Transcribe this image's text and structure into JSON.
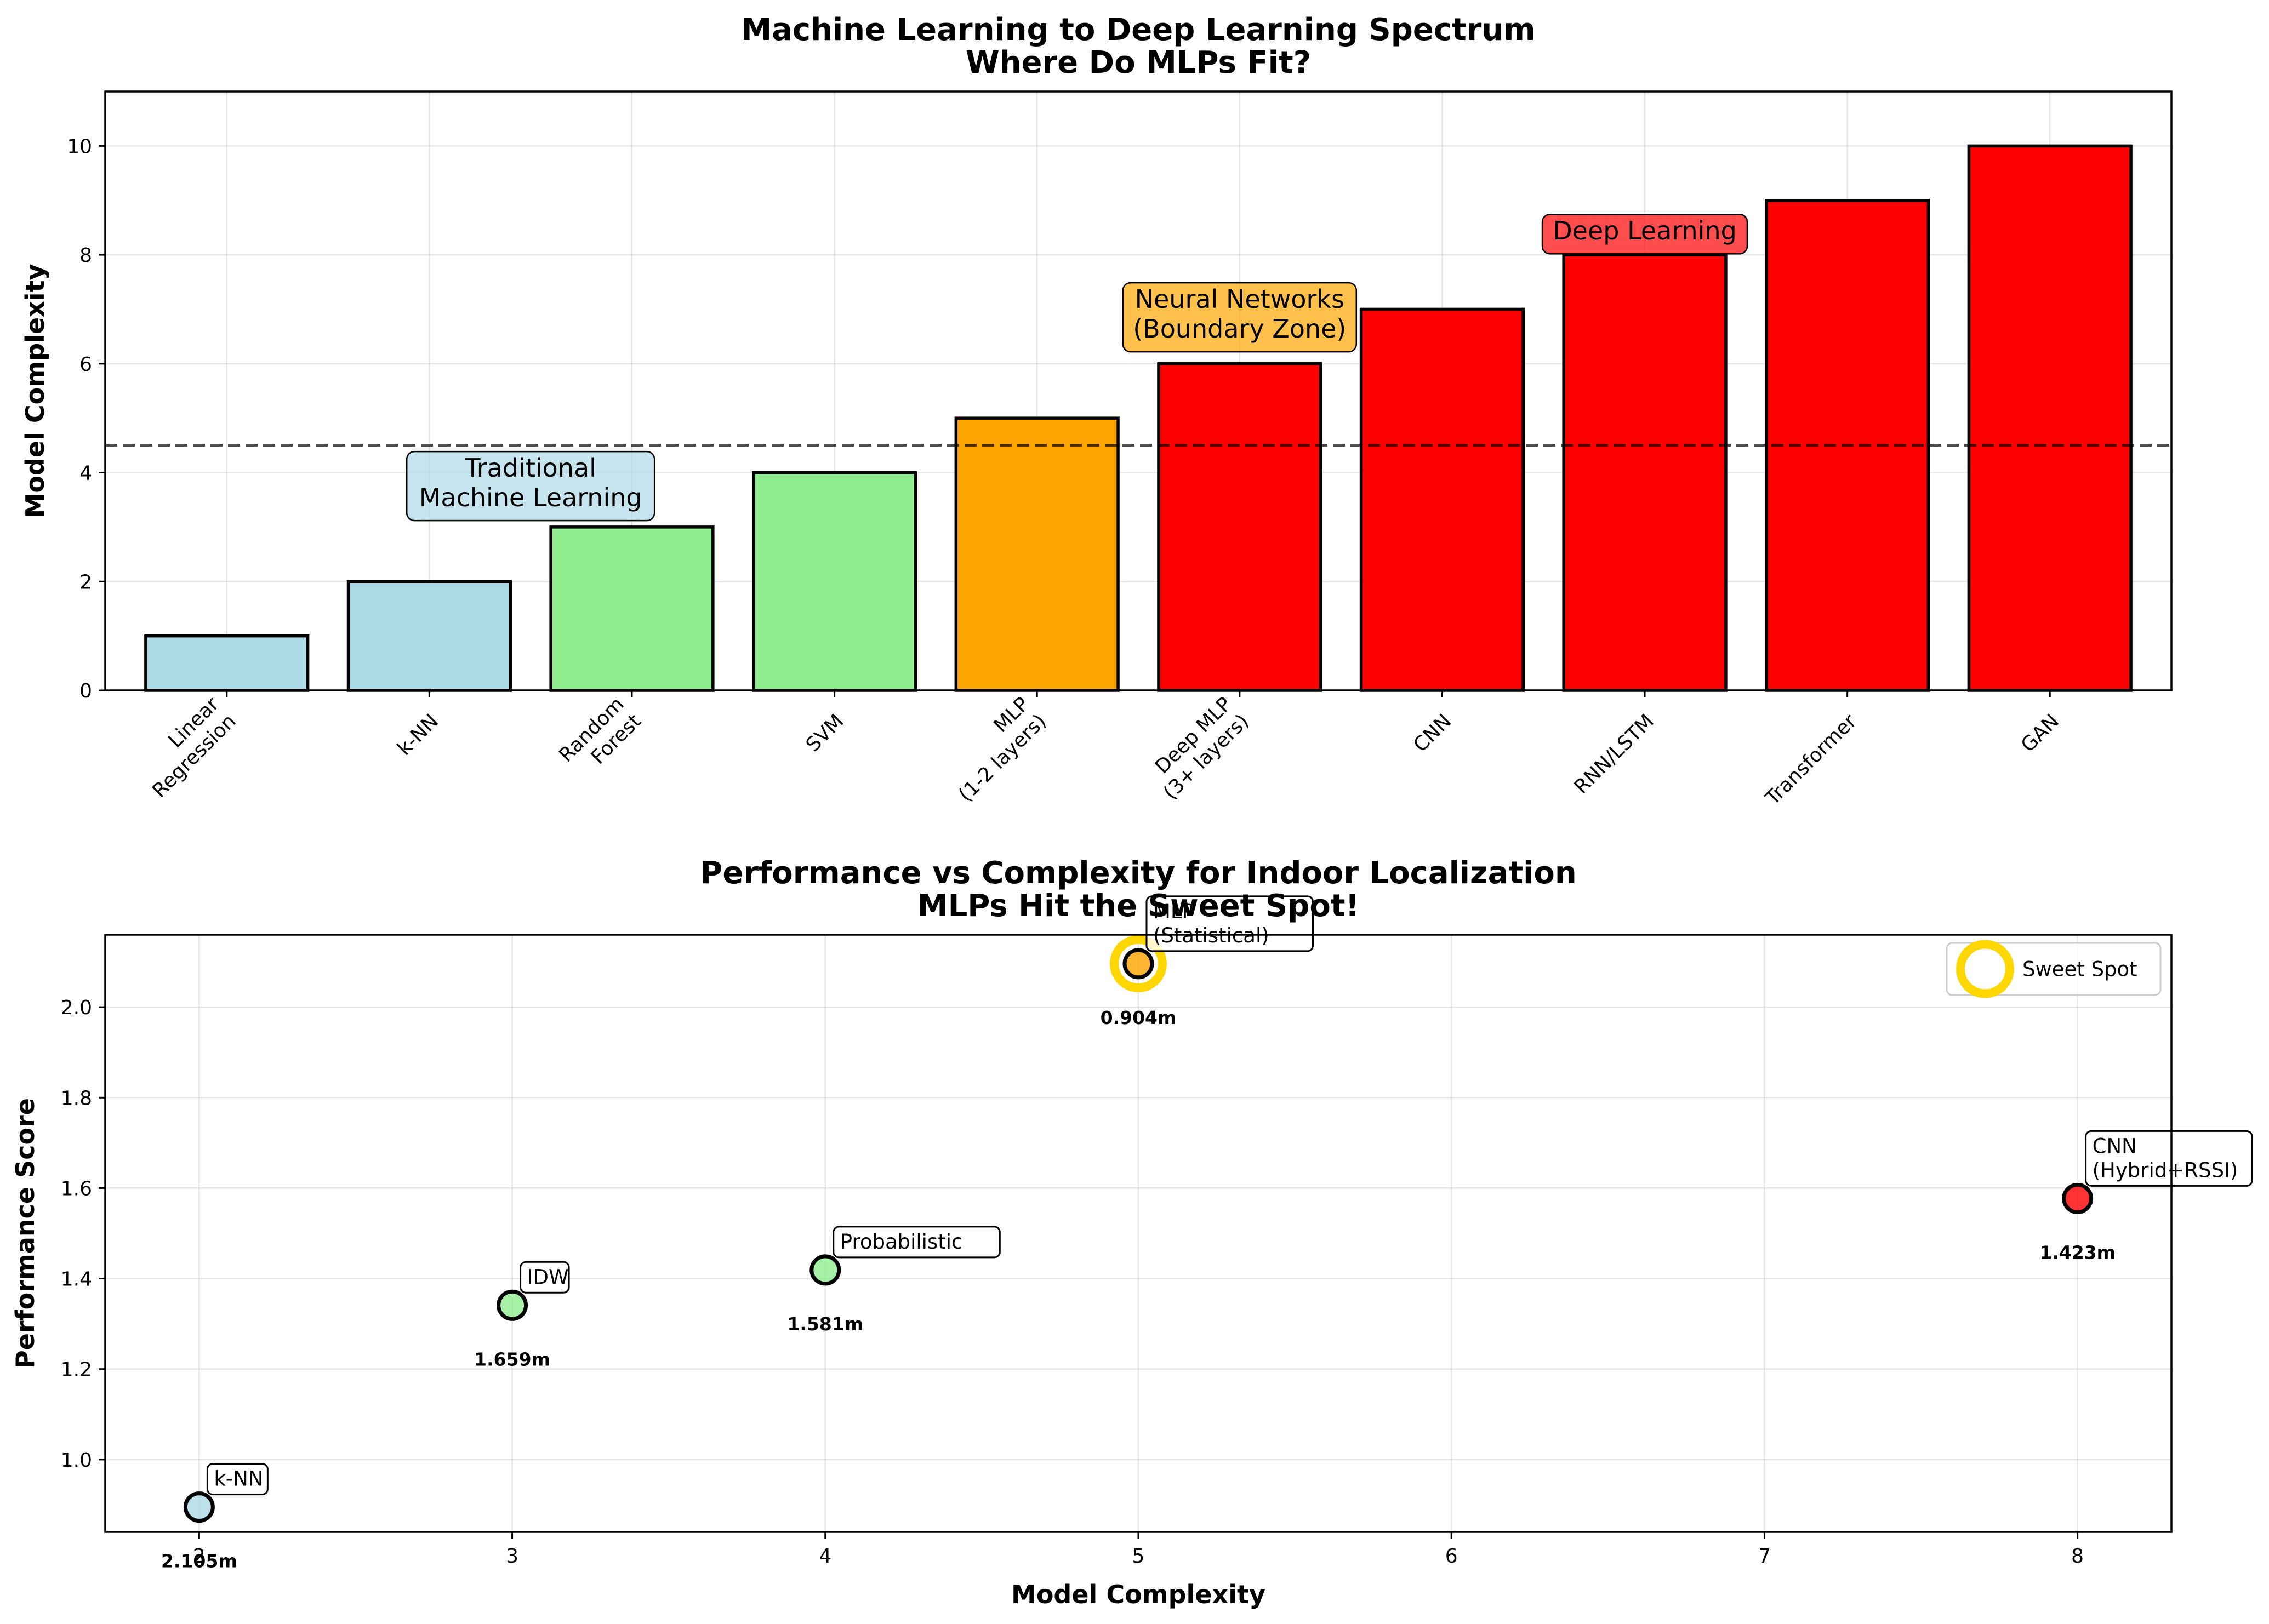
{
  "chart_data": [
    {
      "type": "bar",
      "title": "Machine Learning to Deep Learning Spectrum\nWhere Do MLPs Fit?",
      "xlabel": "",
      "ylabel": "Model Complexity",
      "ylim": [
        0,
        11
      ],
      "yticks": [
        0,
        2,
        4,
        6,
        8,
        10
      ],
      "grid": true,
      "categories": [
        "Linear\nRegression",
        "k-NN",
        "Random\nForest",
        "SVM",
        "MLP\n(1-2 layers)",
        "Deep MLP\n(3+ layers)",
        "CNN",
        "RNN/LSTM",
        "Transformer",
        "GAN"
      ],
      "values": [
        1,
        2,
        3,
        4,
        5,
        6,
        7,
        8,
        9,
        10
      ],
      "colors": [
        "#add8e6",
        "#add8e6",
        "#90ee90",
        "#90ee90",
        "#ffa500",
        "#ff0000",
        "#ff0000",
        "#ff0000",
        "#ff0000",
        "#ff0000"
      ],
      "threshold_line": 4.5,
      "annotations": [
        {
          "text": "Traditional\nMachine Learning",
          "x": 1.5,
          "y": 3.3,
          "color": "#add8e6"
        },
        {
          "text": "Neural Networks\n(Boundary Zone)",
          "x": 5.0,
          "y": 6.4,
          "color": "#ffa500"
        },
        {
          "text": "Deep Learning",
          "x": 7.0,
          "y": 8.2,
          "color": "#ff0000"
        }
      ]
    },
    {
      "type": "scatter",
      "title": "Performance vs Complexity for Indoor Localization\nMLPs Hit the Sweet Spot!",
      "xlabel": "Model Complexity",
      "ylabel": "Performance Score",
      "xlim": [
        1.7,
        8.3
      ],
      "ylim": [
        0.84,
        2.16
      ],
      "xticks": [
        2,
        3,
        4,
        5,
        6,
        7,
        8
      ],
      "yticks": [
        1.0,
        1.2,
        1.4,
        1.6,
        1.8,
        2.0
      ],
      "grid": true,
      "points": [
        {
          "label": "k-NN",
          "x": 2,
          "y": 0.895,
          "error": "2.105m",
          "color": "#add8e6"
        },
        {
          "label": "IDW",
          "x": 3,
          "y": 1.341,
          "error": "1.659m",
          "color": "#90ee90"
        },
        {
          "label": "Probabilistic",
          "x": 4,
          "y": 1.419,
          "error": "1.581m",
          "color": "#90ee90"
        },
        {
          "label": "MLP\n(Statistical)",
          "x": 5,
          "y": 2.096,
          "error": "0.904m",
          "color": "#ffa500"
        },
        {
          "label": "CNN\n(Hybrid+RSSI)",
          "x": 8,
          "y": 1.577,
          "error": "1.423m",
          "color": "#ff0000"
        }
      ],
      "highlight": {
        "x": 5,
        "y": 2.096,
        "color": "#ffd700"
      },
      "legend": {
        "placement": "top-right",
        "entries": [
          {
            "label": "Sweet Spot",
            "color": "#ffd700"
          }
        ]
      }
    }
  ]
}
